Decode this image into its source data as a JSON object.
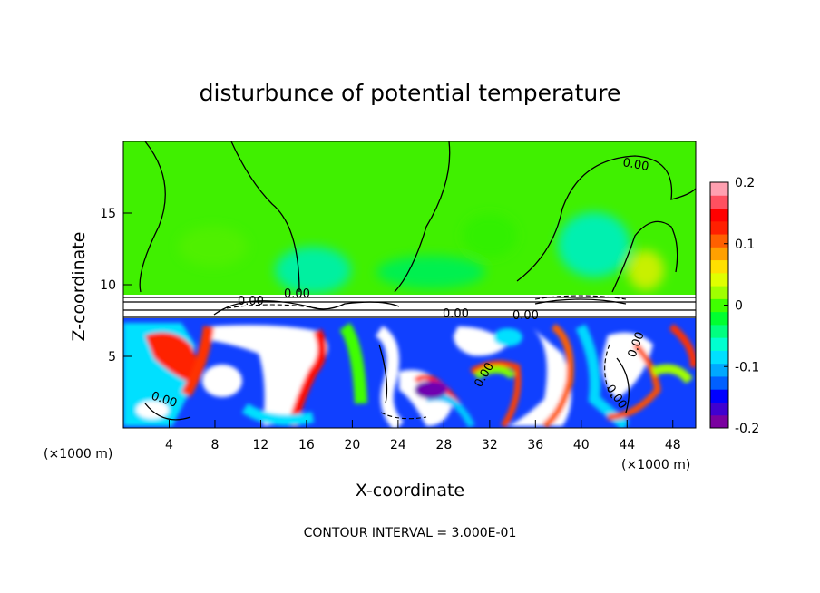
{
  "chart_data": {
    "type": "heatmap",
    "title": "disturbunce of potential temperature",
    "xlabel": "X-coordinate",
    "ylabel": "Z-coordinate",
    "x_unit_label": "(×1000 m)",
    "x_ticks": [
      4,
      8,
      12,
      16,
      20,
      24,
      28,
      32,
      36,
      40,
      44,
      48
    ],
    "y_ticks": [
      5,
      10,
      15
    ],
    "xlim": [
      0,
      50
    ],
    "ylim": [
      0,
      20
    ],
    "footer": "CONTOUR INTERVAL = 3.000E-01",
    "colorbar": {
      "ticks": [
        "-0.2",
        "-0.1",
        "0",
        "0.1",
        "0.2"
      ],
      "range": [
        -0.2,
        0.2
      ],
      "colors": [
        "#7a00a0",
        "#4000d0",
        "#0000ff",
        "#0060ff",
        "#00a8ff",
        "#00e0ff",
        "#00ffd0",
        "#00ff80",
        "#00ff30",
        "#40ff00",
        "#a0ff00",
        "#e0ff00",
        "#ffe000",
        "#ffa000",
        "#ff6000",
        "#ff2000",
        "#ff0000",
        "#ff5060",
        "#ffa0b0"
      ]
    },
    "contour_labels": [
      "0.00",
      "0.00",
      "0.00",
      "0.00",
      "0.00",
      "0.00",
      "0.00",
      "0.00",
      "0.00"
    ]
  }
}
